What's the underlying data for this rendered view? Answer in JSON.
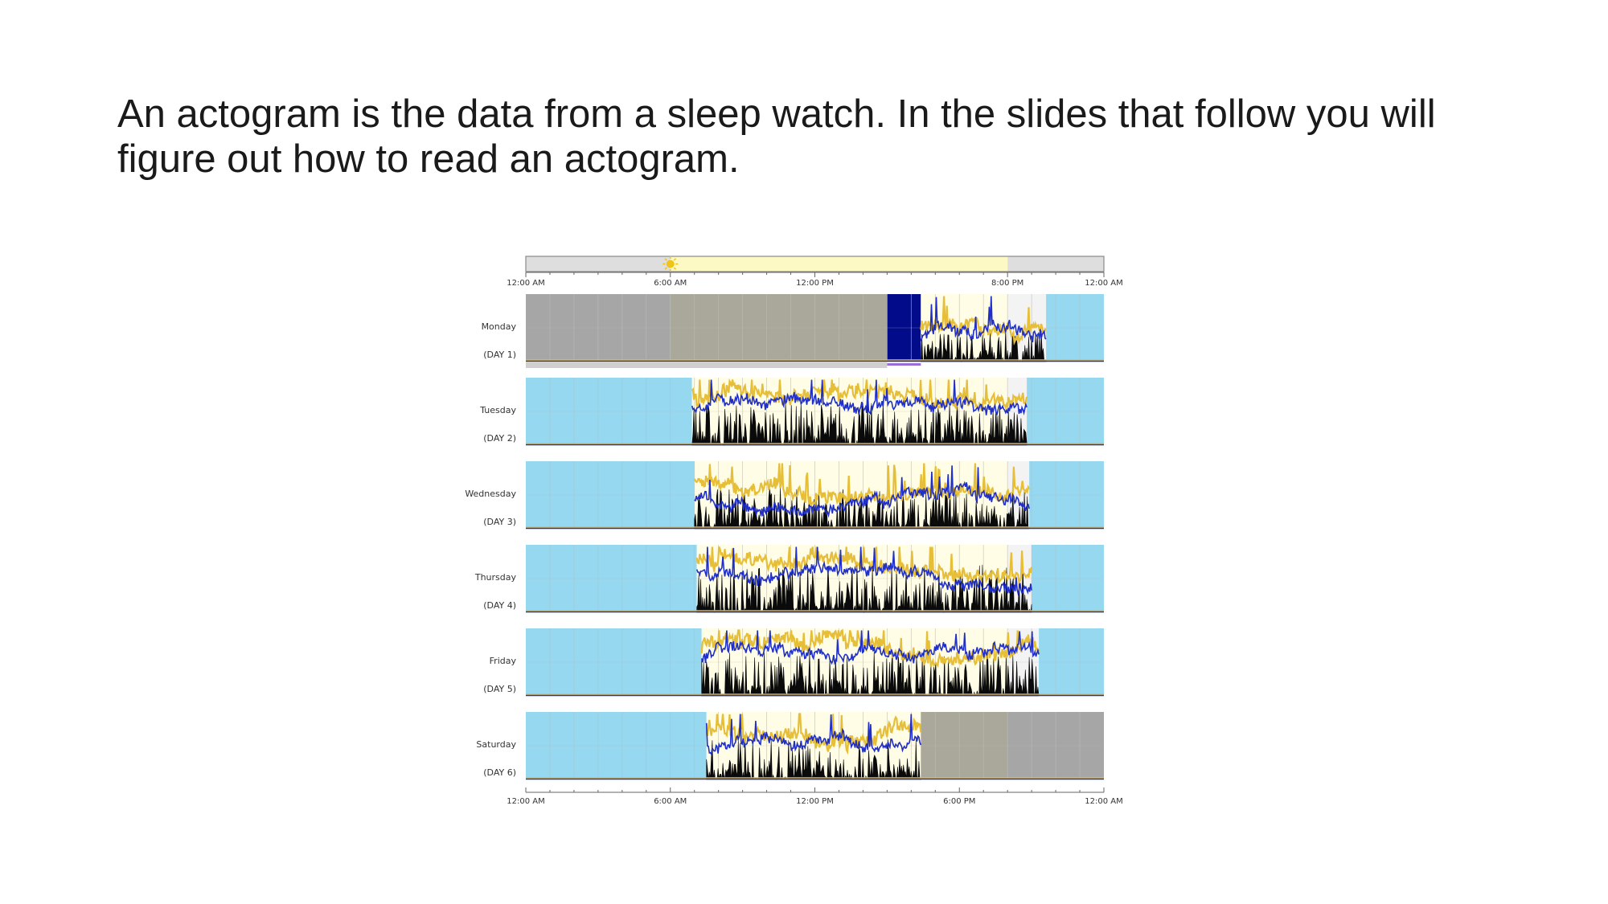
{
  "slide": {
    "line1": "An actogram is the data from a sleep watch.  In the slides that follow you will",
    "line2": "figure out how to read an actogram."
  },
  "chart_data": {
    "type": "actogram",
    "x_range_hours": [
      0,
      24
    ],
    "top_axis_ticks": [
      "12:00 AM",
      "6:00 AM",
      "12:00 PM",
      "8:00 PM",
      "12:00 AM"
    ],
    "top_axis_tick_hours": [
      0,
      6,
      12,
      20,
      24
    ],
    "bottom_axis_ticks": [
      "12:00 AM",
      "6:00 AM",
      "12:00 PM",
      "6:00 PM",
      "12:00 AM"
    ],
    "bottom_axis_tick_hours": [
      0,
      6,
      12,
      18,
      24
    ],
    "sunrise_hour": 6.0,
    "sunset_hour": 20.0,
    "grid": true,
    "colors": {
      "rest": "#95d8f0",
      "excluded": "#a6a6a6",
      "excluded_day": "#a9a89a",
      "off_wrist": "#020b8a",
      "day": "#fffde6",
      "evening": "#f3f3f3",
      "activity": "#0a0a0a",
      "light": "#e6be37",
      "secondary": "#1f2fc8",
      "sun": "#f0c418",
      "moon": "#4aa6d4",
      "daylight_bar": "#fdf9c4",
      "night_bar": "#dedede",
      "gridline": "#bcbcbc"
    },
    "days": [
      {
        "label": "Monday",
        "sub": "(DAY 1)",
        "segments": [
          {
            "type": "excluded",
            "start": 0,
            "end": 6
          },
          {
            "type": "excluded_day",
            "start": 6,
            "end": 15
          },
          {
            "type": "off_wrist",
            "start": 15,
            "end": 16.4
          },
          {
            "type": "active",
            "start": 16.4,
            "end": 21.6
          },
          {
            "type": "rest",
            "start": 21.6,
            "end": 24
          }
        ],
        "activity_start": 16.4,
        "activity_end": 21.6,
        "activity_level": 0.45,
        "light_level": 0.55
      },
      {
        "label": "Tuesday",
        "sub": "(DAY 2)",
        "segments": [
          {
            "type": "rest",
            "start": 0,
            "end": 6.9
          },
          {
            "type": "active",
            "start": 6.9,
            "end": 20.8
          },
          {
            "type": "rest",
            "start": 20.8,
            "end": 24
          }
        ],
        "activity_start": 6.9,
        "activity_end": 20.8,
        "activity_level": 0.6,
        "light_level": 0.7
      },
      {
        "label": "Wednesday",
        "sub": "(DAY 3)",
        "segments": [
          {
            "type": "rest",
            "start": 0,
            "end": 7.0
          },
          {
            "type": "active",
            "start": 7.0,
            "end": 20.9
          },
          {
            "type": "rest",
            "start": 20.9,
            "end": 24
          }
        ],
        "activity_start": 7.0,
        "activity_end": 20.9,
        "activity_level": 0.55,
        "light_level": 0.68
      },
      {
        "label": "Thursday",
        "sub": "(DAY 4)",
        "segments": [
          {
            "type": "rest",
            "start": 0,
            "end": 7.1
          },
          {
            "type": "active",
            "start": 7.1,
            "end": 21.0
          },
          {
            "type": "rest",
            "start": 21.0,
            "end": 24
          }
        ],
        "activity_start": 7.1,
        "activity_end": 21.0,
        "activity_level": 0.65,
        "light_level": 0.78
      },
      {
        "label": "Friday",
        "sub": "(DAY 5)",
        "segments": [
          {
            "type": "rest",
            "start": 0,
            "end": 7.3
          },
          {
            "type": "active",
            "start": 7.3,
            "end": 21.3
          },
          {
            "type": "rest",
            "start": 21.3,
            "end": 24
          }
        ],
        "activity_start": 7.3,
        "activity_end": 21.3,
        "activity_level": 0.6,
        "light_level": 0.72
      },
      {
        "label": "Saturday",
        "sub": "(DAY 6)",
        "segments": [
          {
            "type": "rest",
            "start": 0,
            "end": 7.5
          },
          {
            "type": "active",
            "start": 7.5,
            "end": 16.4
          },
          {
            "type": "excluded_day",
            "start": 16.4,
            "end": 20
          },
          {
            "type": "excluded",
            "start": 20,
            "end": 24
          }
        ],
        "activity_start": 7.5,
        "activity_end": 16.4,
        "activity_level": 0.55,
        "light_level": 0.66
      }
    ]
  }
}
